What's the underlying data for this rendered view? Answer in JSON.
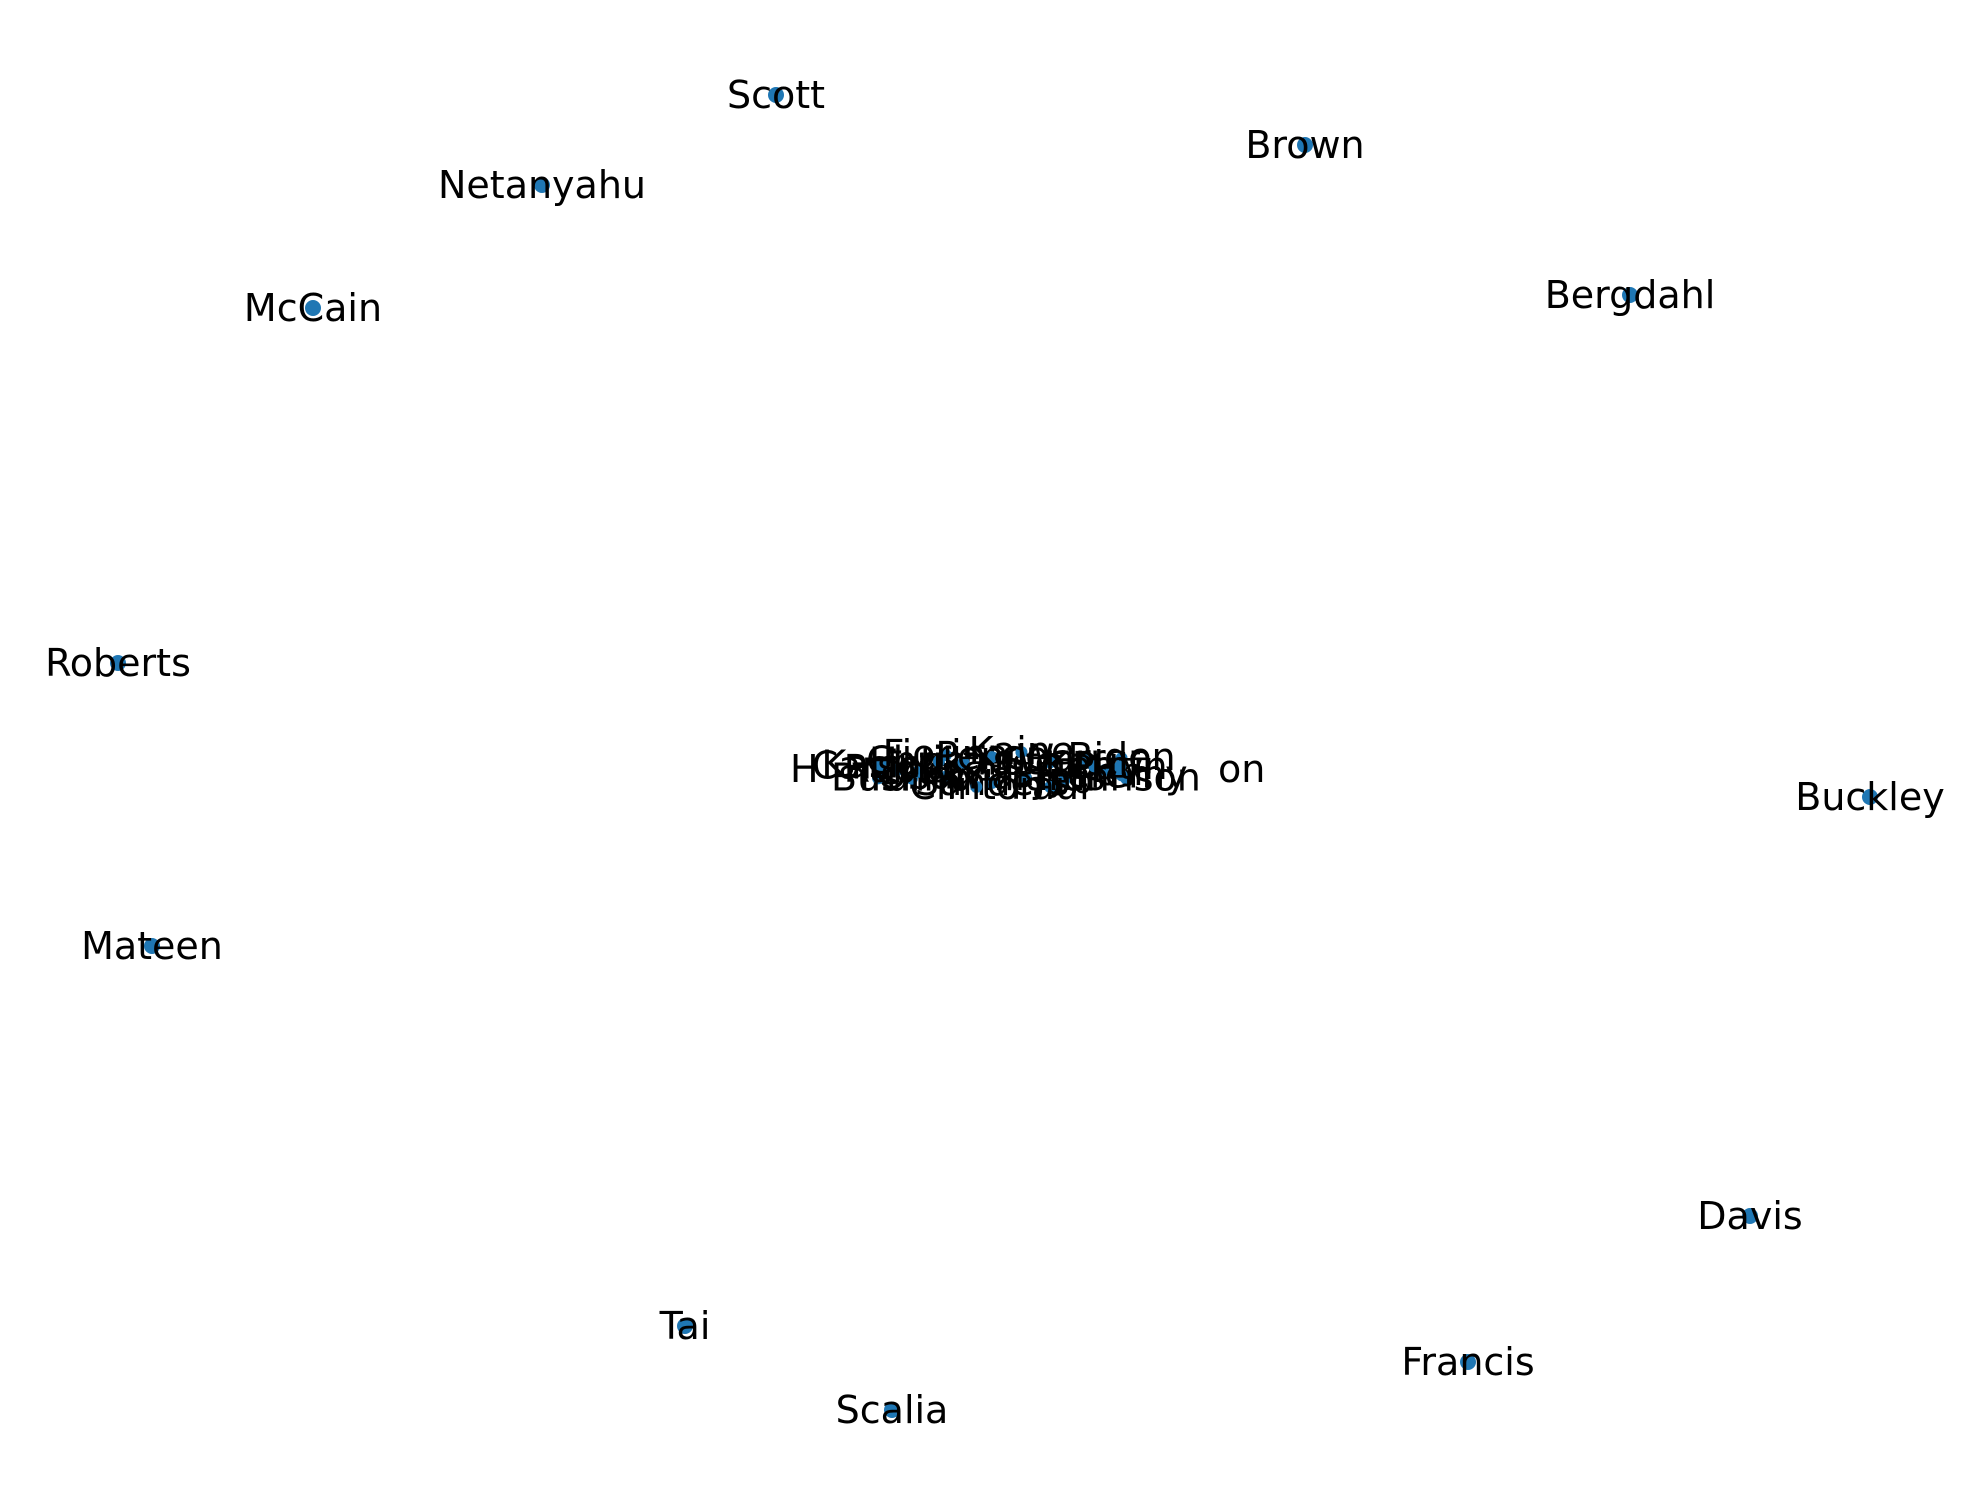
{
  "node_color": "#1f77b4",
  "label_color": "#000000",
  "outer_nodes": [
    {
      "id": "scott",
      "label": "Scott"
    },
    {
      "id": "brown",
      "label": "Brown"
    },
    {
      "id": "netanyahu",
      "label": "Netanyahu"
    },
    {
      "id": "mccain",
      "label": "McCain"
    },
    {
      "id": "bergdahl",
      "label": "Bergdahl"
    },
    {
      "id": "roberts",
      "label": "Roberts"
    },
    {
      "id": "buckley",
      "label": "Buckley"
    },
    {
      "id": "mateen",
      "label": "Mateen"
    },
    {
      "id": "davis",
      "label": "Davis"
    },
    {
      "id": "tai",
      "label": "Tai"
    },
    {
      "id": "francis",
      "label": "Francis"
    },
    {
      "id": "scalia",
      "label": "Scalia"
    }
  ],
  "central_cluster": {
    "visible_labels": [
      "H",
      "on",
      "Johnson",
      "Jeremy",
      "Jeb",
      "Paul",
      "Williams",
      "Sanders",
      "Clinton",
      "Obama",
      "Trump",
      "Bush",
      "Cruz",
      "Rubio",
      "Kasich",
      "Carson",
      "Christie",
      "Fiorina",
      "Huckabee",
      "Pence",
      "Kaine",
      "Stein",
      "Warren",
      "Biden",
      "Kerry",
      "Putin"
    ]
  }
}
